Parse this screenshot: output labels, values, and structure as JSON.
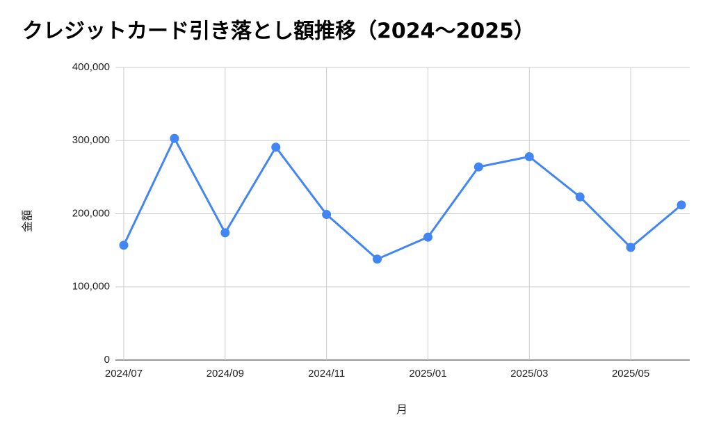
{
  "chart_data": {
    "type": "line",
    "title": "クレジットカード引き落とし額推移（2024〜2025）",
    "x_label": "月",
    "y_label": "金額",
    "categories": [
      "2024/07",
      null,
      "2024/09",
      null,
      "2024/11",
      null,
      "2025/01",
      null,
      "2025/03",
      null,
      "2025/05",
      null
    ],
    "series": [
      {
        "name": "金額",
        "color": "#4285f4",
        "values": [
          157000,
          303000,
          174000,
          291000,
          199000,
          138000,
          168000,
          264000,
          278000,
          223000,
          154000,
          212000
        ]
      }
    ],
    "ylim": [
      0,
      400000
    ],
    "yticks": [
      0,
      {
        "value": 100000,
        "label": "100,000"
      },
      {
        "value": 200000,
        "label": "200,000"
      },
      {
        "value": 300000,
        "label": "300,000"
      },
      {
        "value": 400000,
        "label": "400,000"
      }
    ],
    "grid": true
  }
}
